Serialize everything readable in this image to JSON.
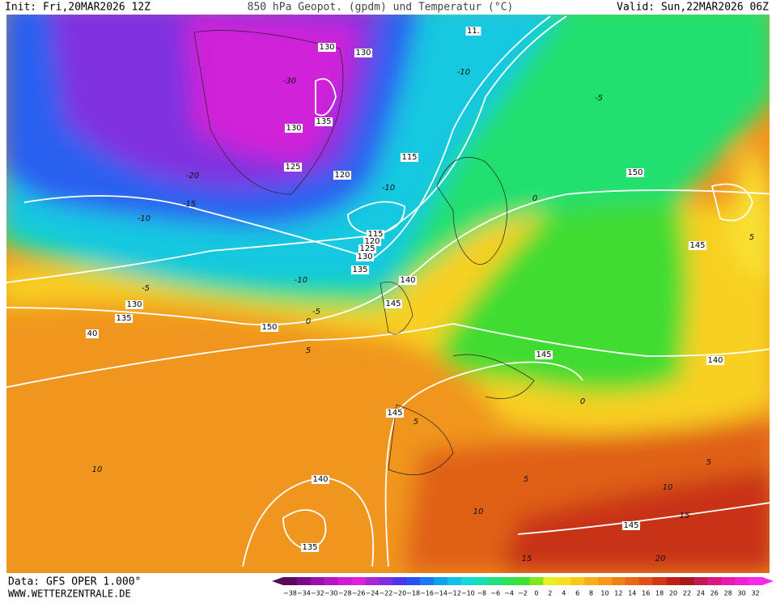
{
  "header": {
    "init": "Init: Fri,20MAR2026 12Z",
    "title": "850 hPa Geopot. (gpdm) und Temperatur (°C)",
    "valid": "Valid: Sun,22MAR2026 06Z"
  },
  "footer": {
    "data": "Data: GFS OPER 1.000°",
    "site": "WWW.WETTERZENTRALE.DE"
  },
  "colorbar": {
    "ticks": [
      "−38",
      "−34",
      "−32",
      "−30",
      "−28",
      "−26",
      "−24",
      "−22",
      "−20",
      "−18",
      "−16",
      "−14",
      "−12",
      "−10",
      "−8",
      "−6",
      "−4",
      "−2",
      "0",
      "2",
      "4",
      "6",
      "8",
      "10",
      "12",
      "14",
      "16",
      "18",
      "20",
      "22",
      "24",
      "26",
      "28",
      "30",
      "32"
    ],
    "colors": [
      "#5a0a5a",
      "#7a0a8a",
      "#9a10aa",
      "#b814c4",
      "#d21ad6",
      "#e020e0",
      "#a828d8",
      "#7a30e0",
      "#4a38e8",
      "#2a50f0",
      "#1a78f0",
      "#10a0f0",
      "#10c0e8",
      "#14d8d8",
      "#18e0b0",
      "#20e080",
      "#30e050",
      "#40e030",
      "#80e818",
      "#e8f020",
      "#f8e020",
      "#f8c818",
      "#f8b018",
      "#f89818",
      "#f08018",
      "#e86818",
      "#e05018",
      "#d03818",
      "#c02018",
      "#a81818",
      "#c01850",
      "#d81880",
      "#e818b0",
      "#f020d0",
      "#f828e8"
    ]
  },
  "geopotential_labels": [
    "130",
    "130",
    "11.",
    "130",
    "135",
    "125",
    "120",
    "115",
    "150",
    "145",
    "115",
    "120",
    "125",
    "130",
    "135",
    "140",
    "145",
    "130",
    "135",
    "40",
    "150",
    "145",
    "140",
    "145",
    "140",
    "135",
    "145"
  ],
  "temperature_labels": [
    "-30",
    "-20",
    "-15",
    "-10",
    "-10",
    "-10",
    "-10",
    "-5",
    "-5",
    "0",
    "5",
    "5",
    "5",
    "10",
    "10",
    "10",
    "15",
    "15",
    "-5",
    "0",
    "5",
    "5",
    "20",
    "0"
  ]
}
